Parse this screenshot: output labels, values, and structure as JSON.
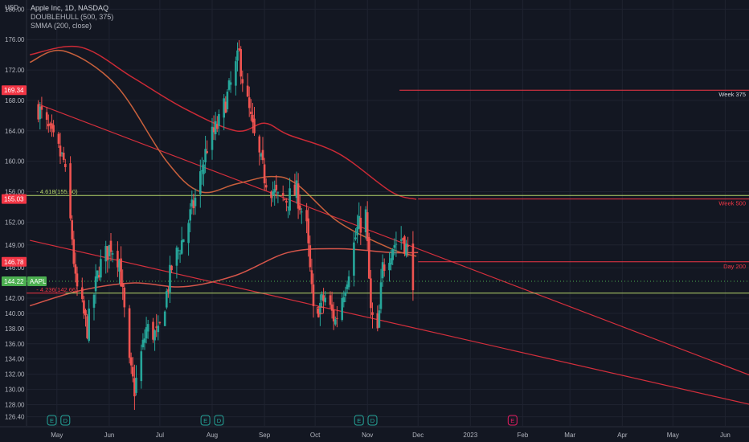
{
  "header": {
    "currency": "USD",
    "symbol_line": "Apple Inc, 1D, NASDAQ",
    "indicator_1": "DOUBLEHULL (500, 375)",
    "indicator_2": "SMMA (200, close)"
  },
  "colors": {
    "background": "#131722",
    "grid": "#1f2330",
    "axis_text": "#b2b5be",
    "up_candle": "#26a69a",
    "down_candle": "#ef5350",
    "trendline": "#d42f3c",
    "smma": "#d5554a",
    "hull_500": "#cc2a36",
    "hull_375": "#c8603c",
    "fib_line": "#b5d56a",
    "last_price_badge": "#4caf50",
    "level_badge": "#f23645"
  },
  "chart_data": {
    "type": "candlestick",
    "title": "Apple Inc, 1D, NASDAQ",
    "ylim": [
      125.2,
      181.2
    ],
    "y_ticks": [
      180.0,
      176.0,
      172.0,
      168.0,
      164.0,
      160.0,
      156.0,
      152.0,
      149.0,
      146.0,
      142.0,
      140.0,
      138.0,
      136.0,
      134.0,
      132.0,
      130.0,
      128.0,
      126.4
    ],
    "x_tick_labels": [
      "May",
      "Jun",
      "Jul",
      "Aug",
      "Sep",
      "Oct",
      "Nov",
      "Dec",
      "2023",
      "Feb",
      "Mar",
      "Apr",
      "May",
      "Jun"
    ],
    "x_tick_dates": [
      "2022-05-01",
      "2022-06-01",
      "2022-07-01",
      "2022-08-01",
      "2022-09-01",
      "2022-10-01",
      "2022-11-01",
      "2022-12-01",
      "2023-01-01",
      "2023-02-01",
      "2023-03-01",
      "2023-04-01",
      "2023-05-01",
      "2023-06-01"
    ],
    "price_path": [
      [
        "2022-04-20",
        167.0
      ],
      [
        "2022-04-28",
        163.0
      ],
      [
        "2022-05-05",
        160.0
      ],
      [
        "2022-05-10",
        150.0
      ],
      [
        "2022-05-12",
        144.0
      ],
      [
        "2022-05-19",
        138.0
      ],
      [
        "2022-05-26",
        146.0
      ],
      [
        "2022-06-02",
        149.0
      ],
      [
        "2022-06-07",
        147.0
      ],
      [
        "2022-06-13",
        133.0
      ],
      [
        "2022-06-16",
        130.0
      ],
      [
        "2022-06-23",
        138.0
      ],
      [
        "2022-06-30",
        137.0
      ],
      [
        "2022-07-08",
        146.0
      ],
      [
        "2022-07-15",
        150.0
      ],
      [
        "2022-07-22",
        155.0
      ],
      [
        "2022-07-29",
        162.0
      ],
      [
        "2022-08-05",
        165.0
      ],
      [
        "2022-08-12",
        170.0
      ],
      [
        "2022-08-17",
        174.0
      ],
      [
        "2022-08-19",
        171.0
      ],
      [
        "2022-08-26",
        163.0
      ],
      [
        "2022-09-01",
        158.0
      ],
      [
        "2022-09-09",
        155.0
      ],
      [
        "2022-09-14",
        155.0
      ],
      [
        "2022-09-20",
        156.0
      ],
      [
        "2022-09-26",
        151.0
      ],
      [
        "2022-09-30",
        140.0
      ],
      [
        "2022-10-07",
        142.0
      ],
      [
        "2022-10-13",
        139.0
      ],
      [
        "2022-10-19",
        144.0
      ],
      [
        "2022-10-26",
        151.0
      ],
      [
        "2022-10-31",
        153.0
      ],
      [
        "2022-11-03",
        140.0
      ],
      [
        "2022-11-07",
        137.0
      ],
      [
        "2022-11-10",
        146.0
      ],
      [
        "2022-11-16",
        149.0
      ],
      [
        "2022-11-22",
        150.0
      ],
      [
        "2022-11-25",
        148.0
      ],
      [
        "2022-11-28",
        144.5
      ]
    ],
    "series": [
      {
        "name": "SMMA (200, close)",
        "points": [
          [
            "2022-04-15",
            141.0
          ],
          [
            "2022-05-15",
            143.0
          ],
          [
            "2022-06-15",
            144.0
          ],
          [
            "2022-07-15",
            143.5
          ],
          [
            "2022-08-15",
            145.0
          ],
          [
            "2022-09-15",
            148.0
          ],
          [
            "2022-10-15",
            148.5
          ],
          [
            "2022-11-15",
            148.0
          ],
          [
            "2022-12-01",
            148.0
          ]
        ]
      },
      {
        "name": "DOUBLEHULL 500",
        "points": [
          [
            "2022-04-15",
            174.0
          ],
          [
            "2022-05-15",
            175.0
          ],
          [
            "2022-06-15",
            171.0
          ],
          [
            "2022-07-15",
            167.0
          ],
          [
            "2022-08-15",
            164.0
          ],
          [
            "2022-09-01",
            165.0
          ],
          [
            "2022-09-15",
            163.5
          ],
          [
            "2022-10-15",
            161.0
          ],
          [
            "2022-11-15",
            156.0
          ],
          [
            "2022-11-30",
            155.0
          ]
        ]
      },
      {
        "name": "DOUBLEHULL 375",
        "points": [
          [
            "2022-04-15",
            173.0
          ],
          [
            "2022-05-05",
            174.5
          ],
          [
            "2022-06-05",
            170.0
          ],
          [
            "2022-07-05",
            160.0
          ],
          [
            "2022-07-25",
            156.0
          ],
          [
            "2022-08-15",
            157.0
          ],
          [
            "2022-09-05",
            158.0
          ],
          [
            "2022-09-20",
            157.0
          ],
          [
            "2022-10-15",
            152.0
          ],
          [
            "2022-11-15",
            148.5
          ],
          [
            "2022-11-30",
            147.5
          ]
        ]
      }
    ],
    "trendlines": [
      {
        "from": [
          "2022-04-20",
          167.5
        ],
        "to": [
          "2023-06-20",
          131.5
        ]
      },
      {
        "from": [
          "2022-04-15",
          149.6
        ],
        "to": [
          "2023-06-20",
          127.8
        ]
      }
    ],
    "levels": [
      {
        "label": "Week 375",
        "value": 169.34,
        "from_date": "2022-11-20"
      },
      {
        "label": "Week 500",
        "value": 155.03,
        "from_date": "2022-12-01"
      },
      {
        "label": "Day 200",
        "value": 146.78,
        "from_date": "2022-12-01"
      },
      {
        "label": "4.618(155.50)",
        "value": 155.5,
        "from_date": "2022-05-06"
      },
      {
        "label": "4.236(142.66)",
        "value": 142.66,
        "from_date": "2022-05-06"
      }
    ],
    "price_badges": [
      {
        "text": "169.34",
        "value": 169.34
      },
      {
        "text": "155.03",
        "value": 155.03
      },
      {
        "text": "146.78",
        "value": 146.78
      },
      {
        "text": "144.22",
        "value": 144.22,
        "tag": "AAPL"
      }
    ],
    "events": [
      {
        "letter": "E",
        "date": "2022-04-28"
      },
      {
        "letter": "D",
        "date": "2022-05-06"
      },
      {
        "letter": "E",
        "date": "2022-07-28"
      },
      {
        "letter": "D",
        "date": "2022-08-05"
      },
      {
        "letter": "E",
        "date": "2022-10-27"
      },
      {
        "letter": "D",
        "date": "2022-11-04"
      },
      {
        "letter": "E",
        "date": "2023-01-26"
      }
    ]
  }
}
